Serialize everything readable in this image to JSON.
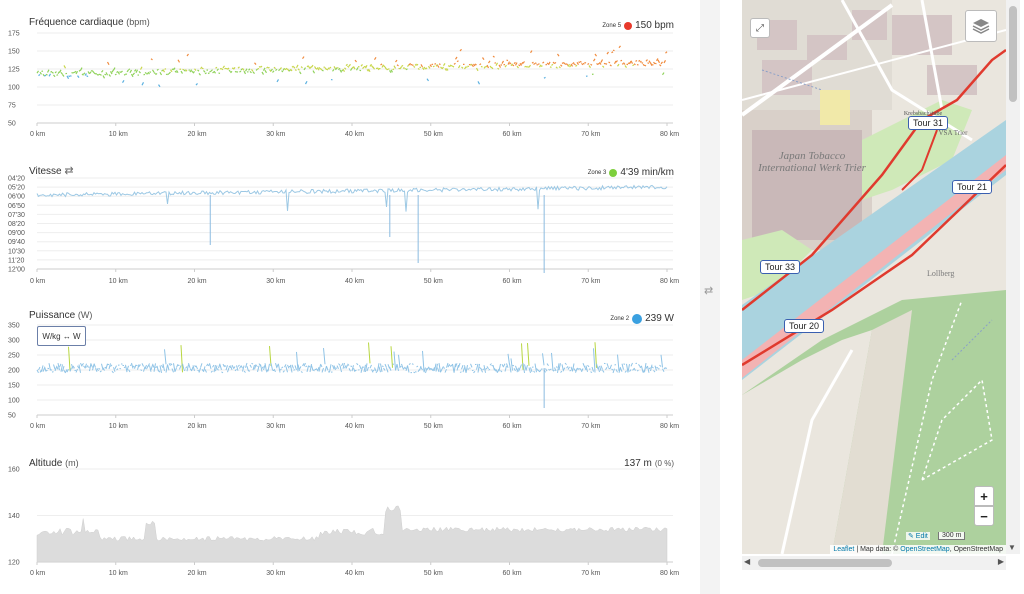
{
  "charts": {
    "heart": {
      "title": "Fréquence cardiaque",
      "unit": "(bpm)",
      "zone": "Zone 5",
      "value": "150 bpm",
      "dot_color": "#e8392b",
      "yticks": [
        "175",
        "150",
        "125",
        "100",
        "75",
        "50"
      ],
      "xticks": [
        "0 km",
        "10 km",
        "20 km",
        "30 km",
        "40 km",
        "50 km",
        "60 km",
        "70 km",
        "80 km"
      ]
    },
    "speed": {
      "title": "Vitesse",
      "zone": "Zone 3",
      "value": "4'39 min/km",
      "dot_color": "#7dcf3c",
      "yticks": [
        "04'20",
        "05'20",
        "06'00",
        "06'50",
        "07'30",
        "08'20",
        "09'00",
        "09'40",
        "10'30",
        "11'20",
        "12'00"
      ],
      "xticks": [
        "0 km",
        "10 km",
        "20 km",
        "30 km",
        "40 km",
        "50 km",
        "60 km",
        "70 km",
        "80 km"
      ]
    },
    "power": {
      "title": "Puissance",
      "unit": "(W)",
      "zone": "Zone 2",
      "value": "239 W",
      "dot_color": "#3aa0e0",
      "toggle": "W/kg ↔ W",
      "yticks": [
        "350",
        "300",
        "250",
        "200",
        "150",
        "100",
        "50"
      ],
      "xticks": [
        "0 km",
        "10 km",
        "20 km",
        "30 km",
        "40 km",
        "50 km",
        "60 km",
        "70 km",
        "80 km"
      ]
    },
    "altitude": {
      "title": "Altitude",
      "unit": "(m)",
      "value": "137 m",
      "grade": "(0 %)",
      "yticks": [
        "160",
        "140",
        "120"
      ],
      "xticks": [
        "0 km",
        "10 km",
        "20 km",
        "30 km",
        "40 km",
        "50 km",
        "60 km",
        "70 km",
        "80 km"
      ]
    }
  },
  "divider_icon": "swap-arrows-icon",
  "map": {
    "fullscreen_icon": "expand-icon",
    "layers_icon": "layers-icon",
    "tours": [
      "Tour 31",
      "Tour 21",
      "Tour 33",
      "Tour 20"
    ],
    "place_labels": [
      "Japan Tobacco International Werk Trier",
      "Lollberg",
      "Krebsbachstube Hausenest",
      "VSA Trier"
    ],
    "zoom_in": "+",
    "zoom_out": "−",
    "edit_label": "✎ Edit",
    "scale": "300 m",
    "attribution_leaflet": "Leaflet",
    "attribution_sep": " | Map data: © ",
    "attribution_osm": "OpenStreetMap",
    "attribution_tail": ", OpenStreetMap"
  }
}
